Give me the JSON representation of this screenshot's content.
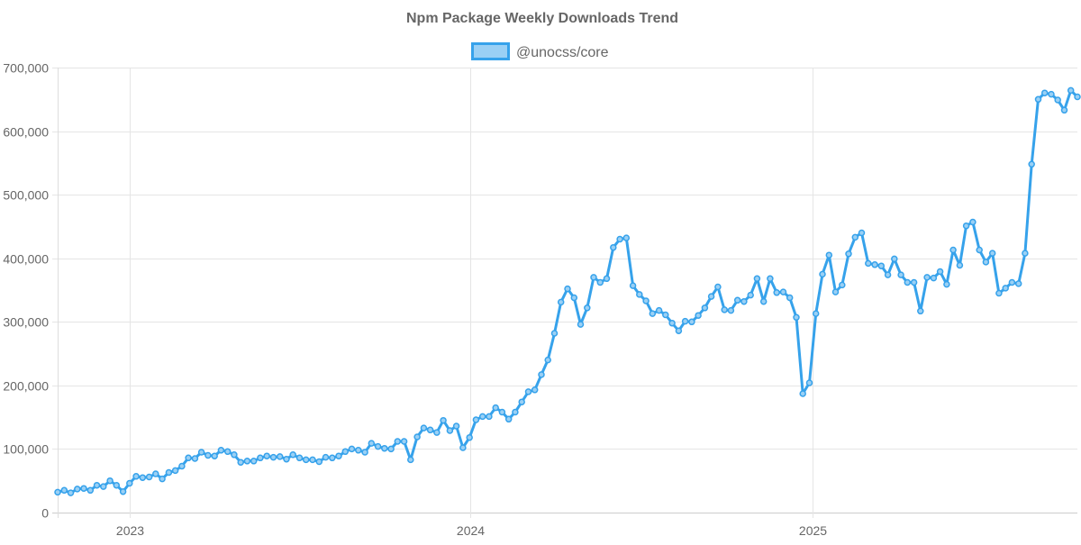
{
  "chart_data": {
    "type": "line",
    "title": "Npm Package Weekly Downloads Trend",
    "legend_placement": "top",
    "grid": true,
    "ylim": [
      0,
      700000
    ],
    "y_ticks": [
      "0",
      "100,000",
      "200,000",
      "300,000",
      "400,000",
      "500,000",
      "600,000",
      "700,000"
    ],
    "y_tick_values": [
      0,
      100000,
      200000,
      300000,
      400000,
      500000,
      600000,
      700000
    ],
    "x_ticks": [
      "2023",
      "2024",
      "2025"
    ],
    "x_tick_dates": [
      "2023-01-01",
      "2024-01-01",
      "2025-01-01"
    ],
    "xlim": [
      "2022-10-16",
      "2025-10-12"
    ],
    "colors": {
      "line": "#36a2eb",
      "fill": "#9ad0f5",
      "title": "#666666",
      "grid": "#e5e5e5"
    },
    "series": [
      {
        "name": "@unocss/core",
        "x": [
          "2022-10-16",
          "2022-10-23",
          "2022-10-30",
          "2022-11-06",
          "2022-11-13",
          "2022-11-20",
          "2022-11-27",
          "2022-12-04",
          "2022-12-11",
          "2022-12-18",
          "2022-12-25",
          "2023-01-01",
          "2023-01-08",
          "2023-01-15",
          "2023-01-22",
          "2023-01-29",
          "2023-02-05",
          "2023-02-12",
          "2023-02-19",
          "2023-02-26",
          "2023-03-05",
          "2023-03-12",
          "2023-03-19",
          "2023-03-26",
          "2023-04-02",
          "2023-04-09",
          "2023-04-16",
          "2023-04-23",
          "2023-04-30",
          "2023-05-07",
          "2023-05-14",
          "2023-05-21",
          "2023-05-28",
          "2023-06-04",
          "2023-06-11",
          "2023-06-18",
          "2023-06-25",
          "2023-07-02",
          "2023-07-09",
          "2023-07-16",
          "2023-07-23",
          "2023-07-30",
          "2023-08-06",
          "2023-08-13",
          "2023-08-20",
          "2023-08-27",
          "2023-09-03",
          "2023-09-10",
          "2023-09-17",
          "2023-09-24",
          "2023-10-01",
          "2023-10-08",
          "2023-10-15",
          "2023-10-22",
          "2023-10-29",
          "2023-11-05",
          "2023-11-12",
          "2023-11-19",
          "2023-11-26",
          "2023-12-03",
          "2023-12-10",
          "2023-12-17",
          "2023-12-24",
          "2023-12-31",
          "2024-01-07",
          "2024-01-14",
          "2024-01-21",
          "2024-01-28",
          "2024-02-04",
          "2024-02-11",
          "2024-02-18",
          "2024-02-25",
          "2024-03-03",
          "2024-03-10",
          "2024-03-17",
          "2024-03-24",
          "2024-03-31",
          "2024-04-07",
          "2024-04-14",
          "2024-04-21",
          "2024-04-28",
          "2024-05-05",
          "2024-05-12",
          "2024-05-19",
          "2024-05-26",
          "2024-06-02",
          "2024-06-09",
          "2024-06-16",
          "2024-06-23",
          "2024-06-30",
          "2024-07-07",
          "2024-07-14",
          "2024-07-21",
          "2024-07-28",
          "2024-08-04",
          "2024-08-11",
          "2024-08-18",
          "2024-08-25",
          "2024-09-01",
          "2024-09-08",
          "2024-09-15",
          "2024-09-22",
          "2024-09-29",
          "2024-10-06",
          "2024-10-13",
          "2024-10-20",
          "2024-10-27",
          "2024-11-03",
          "2024-11-10",
          "2024-11-17",
          "2024-11-24",
          "2024-12-01",
          "2024-12-08",
          "2024-12-15",
          "2024-12-22",
          "2024-12-29",
          "2025-01-05",
          "2025-01-12",
          "2025-01-19",
          "2025-01-26",
          "2025-02-02",
          "2025-02-09",
          "2025-02-16",
          "2025-02-23",
          "2025-03-02",
          "2025-03-09",
          "2025-03-16",
          "2025-03-23",
          "2025-03-30",
          "2025-04-06",
          "2025-04-13",
          "2025-04-20",
          "2025-04-27",
          "2025-05-04",
          "2025-05-11",
          "2025-05-18",
          "2025-05-25",
          "2025-06-01",
          "2025-06-08",
          "2025-06-15",
          "2025-06-22",
          "2025-06-29",
          "2025-07-06",
          "2025-07-13",
          "2025-07-20",
          "2025-07-27",
          "2025-08-03",
          "2025-08-10",
          "2025-08-17",
          "2025-08-24",
          "2025-08-31",
          "2025-09-07",
          "2025-09-14",
          "2025-09-21",
          "2025-09-28",
          "2025-10-05",
          "2025-10-12"
        ],
        "values": [
          32000,
          35000,
          31000,
          37000,
          38000,
          35000,
          43000,
          41000,
          50000,
          43000,
          33000,
          46000,
          57000,
          55000,
          56000,
          61000,
          53000,
          63000,
          66000,
          73000,
          86000,
          85000,
          95000,
          90000,
          89000,
          98000,
          96000,
          91000,
          79000,
          81000,
          81000,
          86000,
          89000,
          87000,
          88000,
          84000,
          91000,
          86000,
          83000,
          83000,
          80000,
          87000,
          86000,
          89000,
          96000,
          100000,
          98000,
          95000,
          109000,
          104000,
          101000,
          100000,
          112000,
          112000,
          83000,
          119000,
          133000,
          130000,
          126000,
          145000,
          129000,
          136000,
          102000,
          118000,
          146000,
          151000,
          151000,
          165000,
          158000,
          147000,
          158000,
          174000,
          190000,
          193000,
          217000,
          240000,
          282000,
          331000,
          352000,
          338000,
          296000,
          322000,
          370000,
          362000,
          368000,
          417000,
          430000,
          432000,
          357000,
          343000,
          333000,
          313000,
          318000,
          311000,
          298000,
          286000,
          301000,
          300000,
          310000,
          322000,
          340000,
          355000,
          319000,
          318000,
          334000,
          332000,
          342000,
          368000,
          332000,
          368000,
          346000,
          347000,
          338000,
          307000,
          187000,
          204000,
          313000,
          375000,
          405000,
          347000,
          358000,
          407000,
          433000,
          440000,
          392000,
          390000,
          388000,
          374000,
          399000,
          374000,
          362000,
          362000,
          317000,
          370000,
          369000,
          379000,
          359000,
          413000,
          389000,
          451000,
          457000,
          413000,
          394000,
          408000,
          345000,
          353000,
          362000,
          360000,
          408000,
          548000,
          650000,
          660000,
          658000,
          649000,
          633000,
          664000,
          654000
        ]
      }
    ]
  }
}
